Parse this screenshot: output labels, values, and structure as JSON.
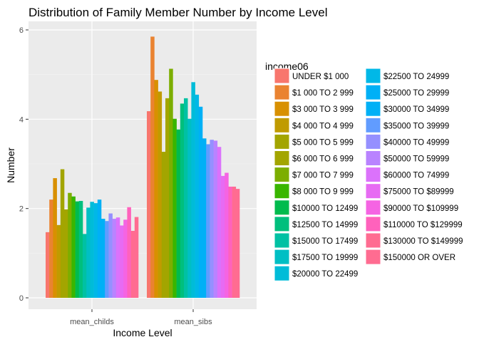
{
  "chart_data": {
    "type": "bar",
    "title": "Distribution of Family Member Number by Income Level",
    "xlabel": "Income Level",
    "ylabel": "Number",
    "categories": [
      "mean_childs",
      "mean_sibs"
    ],
    "ylim": [
      0,
      6.1
    ],
    "yticks": [
      0,
      2,
      4,
      6
    ],
    "grid": true,
    "legend_position": "right",
    "legend_title": "income06",
    "series": [
      {
        "name": "UNDER $1 000",
        "color": "#F8766D",
        "values": [
          1.47,
          4.18
        ]
      },
      {
        "name": "$1 000 TO 2 999",
        "color": "#EA8331",
        "values": [
          2.2,
          5.85
        ]
      },
      {
        "name": "$3 000 TO 3 999",
        "color": "#D89000",
        "values": [
          2.68,
          4.88
        ]
      },
      {
        "name": "$4 000 TO 4 999",
        "color": "#C09B00",
        "values": [
          1.63,
          4.62
        ]
      },
      {
        "name": "$5 000 TO 5 999",
        "color": "#A3A500",
        "values": [
          2.88,
          3.27
        ]
      },
      {
        "name": "$6 000 TO 6 999",
        "color": "#A3A500",
        "values": [
          1.98,
          4.47
        ]
      },
      {
        "name": "$7 000 TO 7 999",
        "color": "#7CAE00",
        "values": [
          2.35,
          5.13
        ]
      },
      {
        "name": "$8 000 TO 9 999",
        "color": "#39B600",
        "values": [
          2.27,
          4.01
        ]
      },
      {
        "name": "$10000 TO 12499",
        "color": "#00BB4E",
        "values": [
          2.16,
          3.77
        ]
      },
      {
        "name": "$12500 TO 14999",
        "color": "#00BF7D",
        "values": [
          2.17,
          4.35
        ]
      },
      {
        "name": "$15000 TO 17499",
        "color": "#00C1A3",
        "values": [
          1.43,
          4.47
        ]
      },
      {
        "name": "$17500 TO 19999",
        "color": "#00BFC4",
        "values": [
          2.02,
          4.01
        ]
      },
      {
        "name": "$20000 TO 22499",
        "color": "#00BCD8",
        "values": [
          2.15,
          4.83
        ]
      },
      {
        "name": "$22500 TO 24999",
        "color": "#00B8E7",
        "values": [
          2.12,
          4.55
        ]
      },
      {
        "name": "$25000 TO 29999",
        "color": "#00B0F6",
        "values": [
          2.2,
          4.28
        ]
      },
      {
        "name": "$30000 TO 34999",
        "color": "#00B0F6",
        "values": [
          1.77,
          3.57
        ]
      },
      {
        "name": "$35000 TO 39999",
        "color": "#619CFF",
        "values": [
          1.72,
          3.44
        ]
      },
      {
        "name": "$40000 TO 49999",
        "color": "#9590FF",
        "values": [
          1.89,
          3.54
        ]
      },
      {
        "name": "$50000 TO 59999",
        "color": "#B983FF",
        "values": [
          1.77,
          3.52
        ]
      },
      {
        "name": "$60000 TO 74999",
        "color": "#DB72FB",
        "values": [
          1.8,
          3.38
        ]
      },
      {
        "name": "$75000 TO $89999",
        "color": "#E76BF3",
        "values": [
          1.62,
          2.73
        ]
      },
      {
        "name": "$90000 TO $109999",
        "color": "#F564E3",
        "values": [
          1.75,
          2.8
        ]
      },
      {
        "name": "$110000 TO $129999",
        "color": "#FF62BC",
        "values": [
          2.03,
          2.49
        ]
      },
      {
        "name": "$130000 TO $149999",
        "color": "#FF6C91",
        "values": [
          1.5,
          2.49
        ]
      },
      {
        "name": "$150000 OR OVER",
        "color": "#FF6C91",
        "values": [
          1.81,
          2.44
        ]
      }
    ]
  }
}
